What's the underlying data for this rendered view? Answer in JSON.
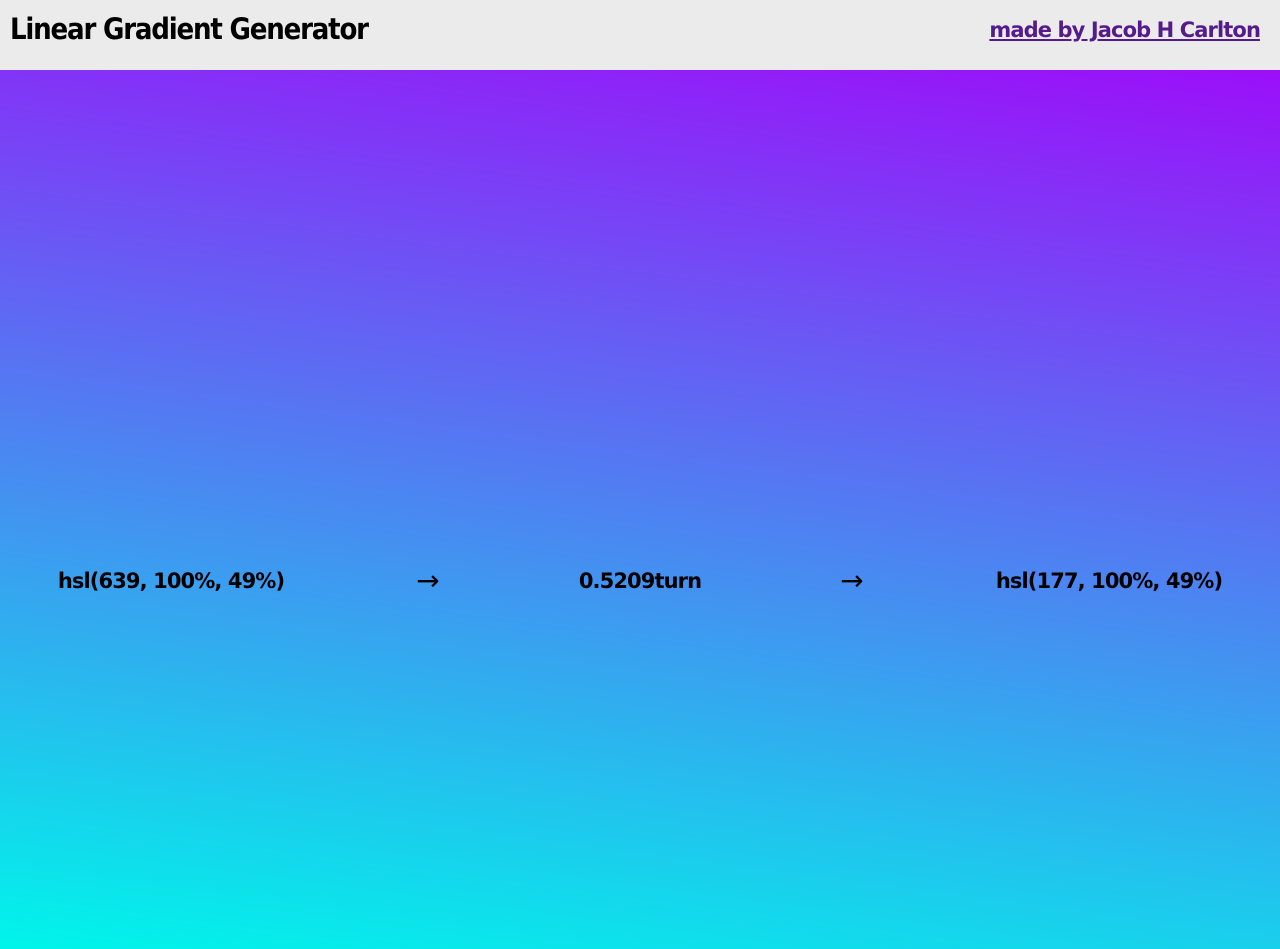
{
  "header": {
    "title": "Linear Gradient Generator",
    "credit_link": "made by Jacob H Carlton"
  },
  "gradient": {
    "start_color": "hsl(639, 100%, 49%)",
    "angle": "0.5209turn",
    "end_color": "hsl(177, 100%, 49%)",
    "arrow_1": "→",
    "arrow_2": "→",
    "start_hex": "#9b0ff9",
    "end_hex": "#00f5ea"
  },
  "colors": {
    "header_bg": "#ebebeb",
    "link": "#551a8b"
  }
}
